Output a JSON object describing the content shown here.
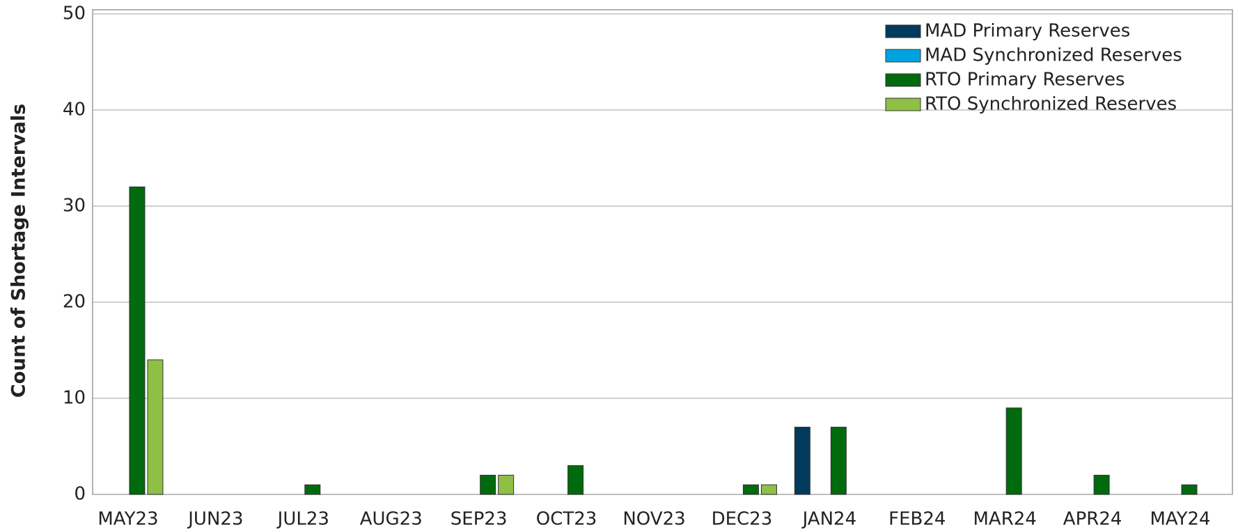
{
  "chart_data": {
    "type": "bar",
    "ylabel": "Count of Shortage Intervals",
    "categories": [
      "MAY23",
      "JUN23",
      "JUL23",
      "AUG23",
      "SEP23",
      "OCT23",
      "NOV23",
      "DEC23",
      "JAN24",
      "FEB24",
      "MAR24",
      "APR24",
      "MAY24"
    ],
    "series": [
      {
        "name": "MAD Primary Reserves",
        "color": "#003b5c",
        "values": [
          0,
          0,
          0,
          0,
          0,
          0,
          0,
          0,
          7,
          0,
          0,
          0,
          0
        ]
      },
      {
        "name": "MAD Synchronized Reserves",
        "color": "#00a3e0",
        "values": [
          0,
          0,
          0,
          0,
          0,
          0,
          0,
          0,
          0,
          0,
          0,
          0,
          0
        ]
      },
      {
        "name": "RTO Primary Reserves",
        "color": "#006a0e",
        "values": [
          32,
          0,
          1,
          0,
          2,
          3,
          0,
          1,
          7,
          0,
          9,
          2,
          1
        ]
      },
      {
        "name": "RTO Synchronized Reserves",
        "color": "#8dc045",
        "values": [
          14,
          0,
          0,
          0,
          2,
          0,
          0,
          1,
          0,
          0,
          0,
          0,
          0
        ]
      }
    ],
    "ylim": [
      0,
      50
    ],
    "yticks": [
      0,
      10,
      20,
      30,
      40,
      50
    ],
    "grid": true,
    "legend": "top-right"
  }
}
